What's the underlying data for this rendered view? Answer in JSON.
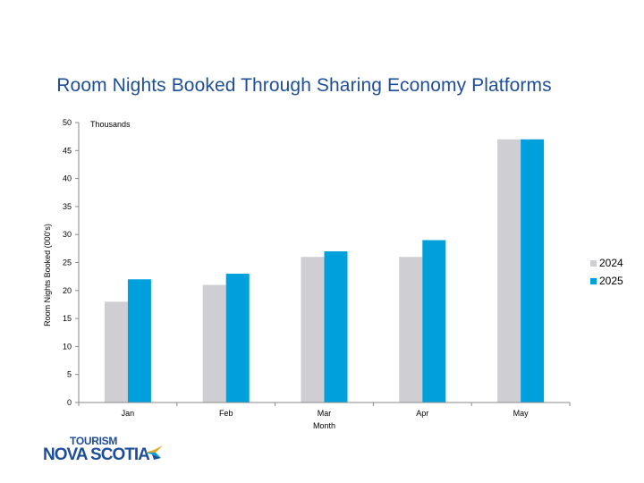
{
  "slide": {
    "title": "Room Nights Booked Through Sharing Economy Platforms"
  },
  "logo": {
    "line1": "TOURISM",
    "line2": "NOVA SCOTIA"
  },
  "chart_data": {
    "type": "bar",
    "title": "Room Nights Booked Through Sharing Economy Platforms",
    "units_label": "Thousands",
    "xlabel": "Month",
    "ylabel": "Room Nights Booked (000's)",
    "ylim": [
      0,
      50
    ],
    "yticks": [
      0,
      5,
      10,
      15,
      20,
      25,
      30,
      35,
      40,
      45,
      50
    ],
    "grid": false,
    "legend_position": "right",
    "categories": [
      "Jan",
      "Feb",
      "Mar",
      "Apr",
      "May"
    ],
    "series": [
      {
        "name": "2024",
        "color": "#cfcfd3",
        "values": [
          18,
          21,
          26,
          26,
          47
        ]
      },
      {
        "name": "2025",
        "color": "#00a0dc",
        "values": [
          22,
          23,
          27,
          29,
          47
        ]
      }
    ]
  }
}
